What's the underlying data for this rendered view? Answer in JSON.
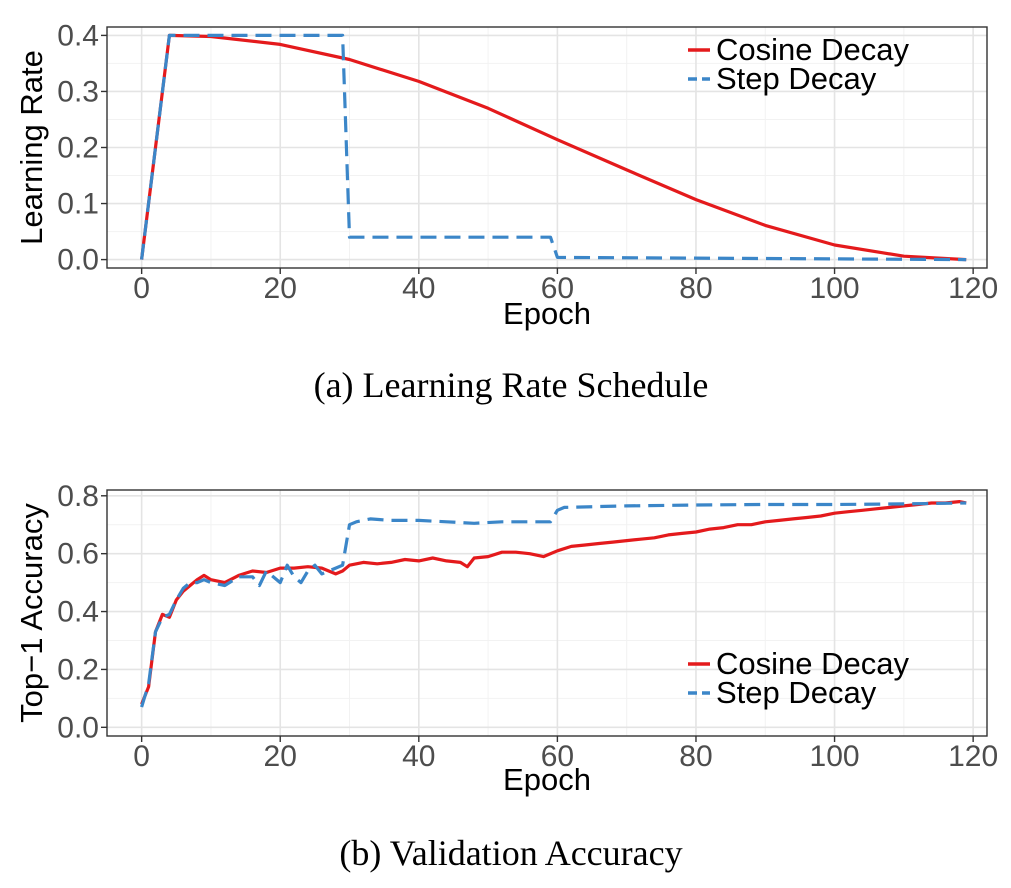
{
  "colors": {
    "cosine": "#e41a1c",
    "step": "#3b86c8"
  },
  "chart_data": [
    {
      "type": "line",
      "caption": "(a) Learning Rate Schedule",
      "xlabel": "Epoch",
      "ylabel": "Learning Rate",
      "xlim": [
        -5,
        122
      ],
      "ylim": [
        -0.015,
        0.415
      ],
      "xticks": [
        0,
        20,
        40,
        60,
        80,
        100,
        120
      ],
      "yticks": [
        0.0,
        0.1,
        0.2,
        0.3,
        0.4
      ],
      "ytick_labels": [
        "0.0",
        "0.1",
        "0.2",
        "0.3",
        "0.4"
      ],
      "grid": true,
      "legend_position": "top-right",
      "series": [
        {
          "name": "Cosine Decay",
          "style": "solid",
          "x": [
            0,
            4,
            10,
            20,
            30,
            40,
            50,
            60,
            70,
            80,
            90,
            100,
            110,
            119
          ],
          "y": [
            0.0,
            0.4,
            0.398,
            0.384,
            0.357,
            0.318,
            0.27,
            0.214,
            0.16,
            0.107,
            0.061,
            0.026,
            0.006,
            0.0
          ]
        },
        {
          "name": "Step Decay",
          "style": "dashed",
          "x": [
            0,
            4,
            29,
            30,
            59,
            60,
            119
          ],
          "y": [
            0.0,
            0.4,
            0.4,
            0.04,
            0.04,
            0.004,
            0.0
          ]
        }
      ]
    },
    {
      "type": "line",
      "caption": "(b) Validation Accuracy",
      "xlabel": "Epoch",
      "ylabel": "Top−1 Accuracy",
      "xlim": [
        -5,
        122
      ],
      "ylim": [
        -0.03,
        0.82
      ],
      "xticks": [
        0,
        20,
        40,
        60,
        80,
        100,
        120
      ],
      "yticks": [
        0.0,
        0.2,
        0.4,
        0.6,
        0.8
      ],
      "ytick_labels": [
        "0.0",
        "0.2",
        "0.4",
        "0.6",
        "0.8"
      ],
      "grid": true,
      "legend_position": "bottom-right",
      "series": [
        {
          "name": "Cosine Decay",
          "style": "solid",
          "x": [
            0,
            1,
            2,
            3,
            4,
            5,
            6,
            7,
            8,
            9,
            10,
            12,
            14,
            16,
            18,
            20,
            22,
            24,
            26,
            28,
            29,
            30,
            32,
            34,
            36,
            38,
            40,
            42,
            44,
            46,
            47,
            48,
            50,
            52,
            54,
            56,
            58,
            60,
            62,
            64,
            66,
            68,
            70,
            72,
            74,
            76,
            78,
            80,
            82,
            84,
            86,
            88,
            90,
            92,
            94,
            96,
            98,
            100,
            102,
            104,
            106,
            108,
            110,
            112,
            114,
            116,
            118,
            119
          ],
          "y": [
            0.08,
            0.14,
            0.33,
            0.39,
            0.38,
            0.44,
            0.47,
            0.49,
            0.51,
            0.525,
            0.51,
            0.5,
            0.525,
            0.54,
            0.535,
            0.55,
            0.55,
            0.555,
            0.55,
            0.53,
            0.54,
            0.56,
            0.57,
            0.565,
            0.57,
            0.58,
            0.575,
            0.585,
            0.575,
            0.57,
            0.555,
            0.585,
            0.59,
            0.605,
            0.605,
            0.6,
            0.59,
            0.61,
            0.625,
            0.63,
            0.635,
            0.64,
            0.645,
            0.65,
            0.655,
            0.665,
            0.67,
            0.675,
            0.685,
            0.69,
            0.7,
            0.7,
            0.71,
            0.715,
            0.72,
            0.725,
            0.73,
            0.74,
            0.745,
            0.75,
            0.755,
            0.76,
            0.765,
            0.77,
            0.775,
            0.775,
            0.78,
            0.775
          ]
        },
        {
          "name": "Step Decay",
          "style": "dashed",
          "x": [
            0,
            1,
            2,
            3,
            4,
            5,
            6,
            7,
            8,
            9,
            10,
            12,
            14,
            16,
            17,
            18,
            20,
            21,
            22,
            23,
            24,
            25,
            26,
            28,
            29,
            30,
            31,
            33,
            36,
            40,
            44,
            48,
            52,
            56,
            59,
            60,
            61,
            70,
            80,
            90,
            100,
            110,
            119
          ],
          "y": [
            0.07,
            0.15,
            0.33,
            0.38,
            0.39,
            0.44,
            0.48,
            0.5,
            0.5,
            0.51,
            0.5,
            0.49,
            0.52,
            0.52,
            0.49,
            0.54,
            0.5,
            0.56,
            0.52,
            0.5,
            0.54,
            0.56,
            0.53,
            0.55,
            0.56,
            0.7,
            0.71,
            0.72,
            0.715,
            0.715,
            0.71,
            0.705,
            0.71,
            0.71,
            0.71,
            0.75,
            0.76,
            0.765,
            0.768,
            0.77,
            0.77,
            0.772,
            0.775
          ]
        }
      ]
    }
  ]
}
